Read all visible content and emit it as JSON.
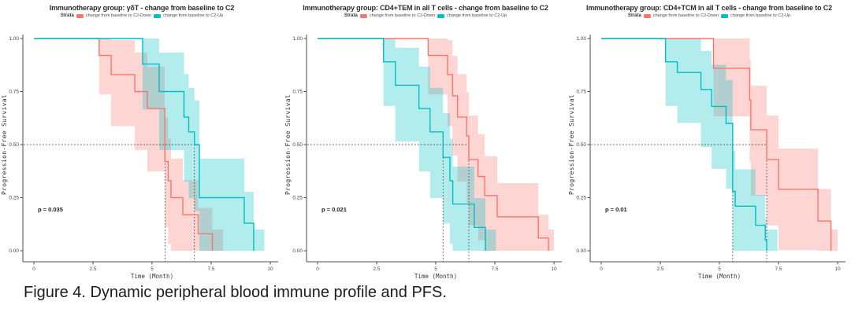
{
  "figure": {
    "caption": "Figure 4. Dynamic peripheral blood immune profile and PFS."
  },
  "colors": {
    "down": "#F8766D",
    "up": "#00BFC4",
    "axis": "#4d4d4d",
    "dashed": "#4a4a4a",
    "band_opacity": 0.3
  },
  "panels": [
    {
      "title": "Immunotherapy group:  γδT - change from baseline to C2",
      "legend": {
        "strata_label": "Strata",
        "down_label": "change from baseline to C2-Down",
        "up_label": "change from baseline to C2-Up"
      },
      "p_value": "p = 0.035",
      "axes": {
        "x_label": "Time (Month)",
        "y_label": "Progression-Free Survival",
        "x_ticks": [
          "0",
          "2.5",
          "5",
          "7.5",
          "10"
        ],
        "y_ticks": [
          "1.00",
          "0.75",
          "0.50",
          "0.25",
          "0.00"
        ]
      },
      "chart_data": {
        "type": "line",
        "variant": "kaplan-meier-step",
        "xlim": [
          0,
          10
        ],
        "ylim": [
          0,
          1
        ],
        "series": [
          {
            "name": "change from baseline to C2-Down",
            "color_key": "down",
            "median": 5.55,
            "steps": [
              [
                2.76,
                0.92
              ],
              [
                3.27,
                0.83
              ],
              [
                4.27,
                0.75
              ],
              [
                4.8,
                0.67
              ],
              [
                5.54,
                0.42
              ],
              [
                5.68,
                0.33
              ],
              [
                5.8,
                0.25
              ],
              [
                6.3,
                0.17
              ],
              [
                6.95,
                0.08
              ],
              [
                7.55,
                0
              ]
            ]
          },
          {
            "name": "change from baseline to C2-Up",
            "color_key": "up",
            "median": 6.79,
            "steps": [
              [
                4.6,
                0.88
              ],
              [
                5.3,
                0.75
              ],
              [
                6.35,
                0.63
              ],
              [
                6.55,
                0.56
              ],
              [
                6.79,
                0.5
              ],
              [
                7.0,
                0.25
              ],
              [
                8.9,
                0.13
              ],
              [
                9.3,
                0
              ]
            ]
          }
        ]
      }
    },
    {
      "title": "Immunotherapy group:  CD4+TEM in all T cells - change from baseline to C2",
      "legend": {
        "strata_label": "Strata",
        "down_label": "change from baseline to C2-Down",
        "up_label": "change from baseline to C2-Up"
      },
      "p_value": "p = 0.021",
      "axes": {
        "x_label": "Time (Month)",
        "y_label": "Progression-Free Survival",
        "x_ticks": [
          "0",
          "2.5",
          "5",
          "7.5",
          "10"
        ],
        "y_ticks": [
          "1.00",
          "0.75",
          "0.50",
          "0.25",
          "0.00"
        ]
      },
      "chart_data": {
        "type": "line",
        "variant": "kaplan-meier-step",
        "xlim": [
          0,
          10
        ],
        "ylim": [
          0,
          1
        ],
        "series": [
          {
            "name": "change from baseline to C2-Down",
            "color_key": "down",
            "median": 6.4,
            "steps": [
              [
                4.68,
                0.92
              ],
              [
                5.5,
                0.83
              ],
              [
                5.71,
                0.73
              ],
              [
                5.92,
                0.63
              ],
              [
                6.31,
                0.54
              ],
              [
                6.4,
                0.43
              ],
              [
                6.79,
                0.35
              ],
              [
                7.07,
                0.26
              ],
              [
                7.6,
                0.16
              ],
              [
                9.34,
                0.06
              ],
              [
                9.77,
                0
              ]
            ]
          },
          {
            "name": "change from baseline to C2-Up",
            "color_key": "up",
            "median": 5.31,
            "steps": [
              [
                2.79,
                0.89
              ],
              [
                3.29,
                0.78
              ],
              [
                4.29,
                0.67
              ],
              [
                4.76,
                0.56
              ],
              [
                5.31,
                0.44
              ],
              [
                5.6,
                0.33
              ],
              [
                5.72,
                0.22
              ],
              [
                6.63,
                0.11
              ],
              [
                7.1,
                0
              ]
            ]
          }
        ]
      }
    },
    {
      "title": "Immunotherapy group:  CD4+TCM in all T cells - change from baseline to C2",
      "legend": {
        "strata_label": "Strata",
        "down_label": "change from baseline to C2-Down",
        "up_label": "change from baseline to C2-Up"
      },
      "p_value": "p = 0.01",
      "axes": {
        "x_label": "Time (Month)",
        "y_label": "Progression-Free Survival",
        "x_ticks": [
          "0",
          "2.5",
          "5",
          "7.5",
          "10"
        ],
        "y_ticks": [
          "1.00",
          "0.75",
          "0.50",
          "0.25",
          "0.00"
        ]
      },
      "chart_data": {
        "type": "line",
        "variant": "kaplan-meier-step",
        "xlim": [
          0,
          10
        ],
        "ylim": [
          0,
          1
        ],
        "series": [
          {
            "name": "change from baseline to C2-Down",
            "color_key": "down",
            "median": 7.0,
            "steps": [
              [
                4.75,
                0.86
              ],
              [
                6.28,
                0.71
              ],
              [
                6.33,
                0.57
              ],
              [
                7.0,
                0.43
              ],
              [
                7.5,
                0.29
              ],
              [
                9.17,
                0.14
              ],
              [
                9.72,
                0
              ]
            ]
          },
          {
            "name": "change from baseline to C2-Up",
            "color_key": "up",
            "median": 5.56,
            "steps": [
              [
                2.72,
                0.89
              ],
              [
                3.22,
                0.84
              ],
              [
                4.22,
                0.76
              ],
              [
                4.67,
                0.68
              ],
              [
                5.28,
                0.6
              ],
              [
                5.56,
                0.28
              ],
              [
                5.67,
                0.21
              ],
              [
                6.53,
                0.12
              ],
              [
                6.94,
                0.05
              ],
              [
                7.0,
                0
              ]
            ]
          }
        ]
      }
    }
  ]
}
